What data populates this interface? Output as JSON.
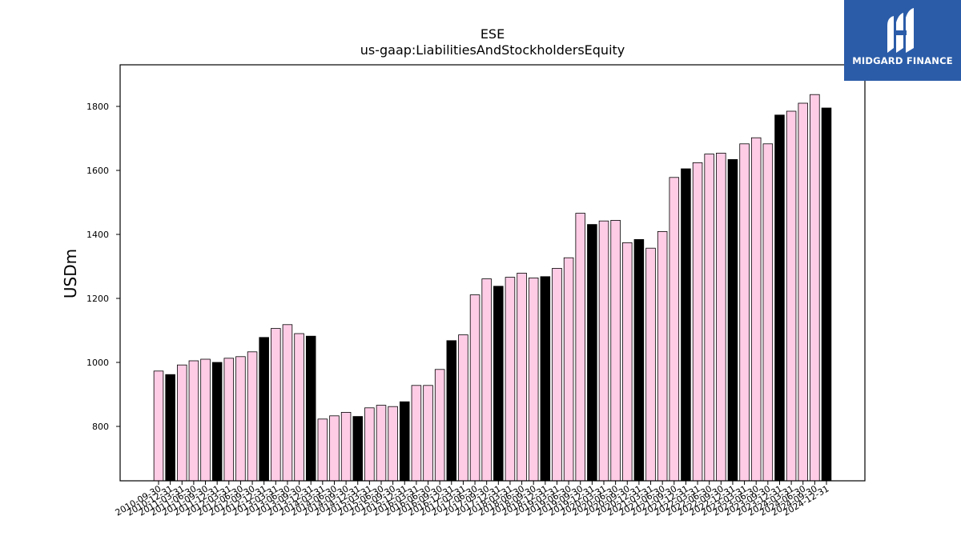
{
  "logo": {
    "text": "MIDGARD FINANCE",
    "background": "#2b5ca8"
  },
  "chart_data": {
    "type": "bar",
    "title": "ESE",
    "subtitle": "us-gaap:LiabilitiesAndStockholdersEquity",
    "xlabel": "",
    "ylabel": "USDm",
    "ylim": [
      630,
      1930
    ],
    "yticks": [
      800,
      1000,
      1200,
      1400,
      1600,
      1800
    ],
    "grid": false,
    "colors": {
      "quarter": "#ffcce6",
      "fiscal_year_end": "#000000",
      "edge": "#000000"
    },
    "categories": [
      "2010-09-30",
      "2010-12-31",
      "2011-03-31",
      "2011-06-30",
      "2011-09-30",
      "2011-12-31",
      "2012-03-31",
      "2012-06-30",
      "2012-09-30",
      "2012-12-31",
      "2013-03-31",
      "2013-06-30",
      "2013-09-30",
      "2013-12-31",
      "2014-03-31",
      "2014-06-30",
      "2014-09-30",
      "2014-12-31",
      "2015-03-31",
      "2015-06-30",
      "2015-09-30",
      "2015-12-31",
      "2016-03-31",
      "2016-06-30",
      "2016-09-30",
      "2016-12-31",
      "2017-03-31",
      "2017-06-30",
      "2017-09-30",
      "2017-12-31",
      "2018-03-31",
      "2018-06-30",
      "2018-09-30",
      "2018-12-31",
      "2019-03-31",
      "2019-06-30",
      "2019-09-30",
      "2019-12-31",
      "2020-03-31",
      "2020-06-30",
      "2020-09-30",
      "2020-12-31",
      "2021-03-31",
      "2021-06-30",
      "2021-09-30",
      "2021-12-31",
      "2022-03-31",
      "2022-06-30",
      "2022-09-30",
      "2022-12-31",
      "2023-03-31",
      "2023-06-30",
      "2023-09-30",
      "2023-12-31",
      "2024-03-31",
      "2024-06-30",
      "2024-09-30",
      "2024-12-31"
    ],
    "values": [
      973,
      962,
      992,
      1005,
      1010,
      1000,
      1013,
      1018,
      1033,
      1078,
      1106,
      1118,
      1090,
      1082,
      823,
      833,
      844,
      831,
      858,
      866,
      862,
      877,
      928,
      928,
      978,
      1068,
      1086,
      1211,
      1261,
      1238,
      1266,
      1279,
      1264,
      1268,
      1294,
      1327,
      1466,
      1431,
      1442,
      1444,
      1374,
      1384,
      1357,
      1409,
      1578,
      1605,
      1624,
      1651,
      1654,
      1634,
      1683,
      1702,
      1683,
      1773,
      1785,
      1810,
      1837,
      1795
    ],
    "fiscal_year_end": [
      false,
      true,
      false,
      false,
      false,
      true,
      false,
      false,
      false,
      true,
      false,
      false,
      false,
      true,
      false,
      false,
      false,
      true,
      false,
      false,
      false,
      true,
      false,
      false,
      false,
      true,
      false,
      false,
      false,
      true,
      false,
      false,
      false,
      true,
      false,
      false,
      false,
      true,
      false,
      false,
      false,
      true,
      false,
      false,
      false,
      true,
      false,
      false,
      false,
      true,
      false,
      false,
      false,
      true,
      false,
      false,
      false,
      true
    ]
  }
}
